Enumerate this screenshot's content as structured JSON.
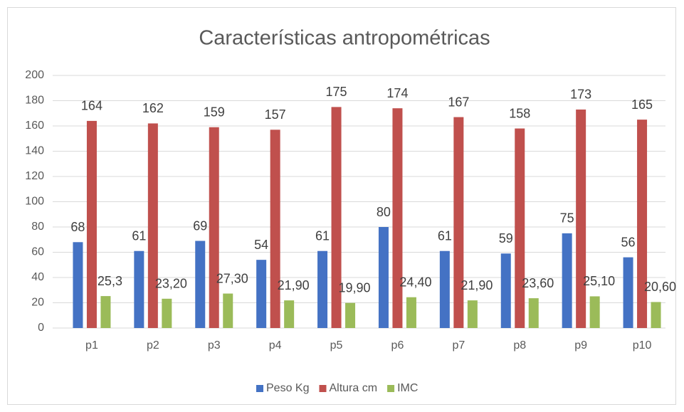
{
  "chart_data": {
    "type": "bar",
    "title": "Características antropométricas",
    "categories": [
      "p1",
      "p2",
      "p3",
      "p4",
      "p5",
      "p6",
      "p7",
      "p8",
      "p9",
      "p10"
    ],
    "series": [
      {
        "name": "Peso Kg",
        "color": "#4472c4",
        "values": [
          68,
          61,
          69,
          54,
          61,
          80,
          61,
          59,
          75,
          56
        ]
      },
      {
        "name": "Altura cm",
        "color": "#c0504d",
        "values": [
          164,
          162,
          159,
          157,
          175,
          174,
          167,
          158,
          173,
          165
        ]
      },
      {
        "name": "IMC",
        "color": "#9bbb59",
        "values": [
          25.3,
          23.2,
          27.3,
          21.9,
          19.9,
          24.4,
          21.9,
          23.6,
          25.1,
          20.6
        ],
        "value_labels": [
          "25,3",
          "23,20",
          "27,30",
          "21,90",
          "19,90",
          "24,40",
          "21,90",
          "23,60",
          "25,10",
          "20,60"
        ]
      }
    ],
    "ylim": [
      0,
      200
    ],
    "yticks": [
      0,
      20,
      40,
      60,
      80,
      100,
      120,
      140,
      160,
      180,
      200
    ],
    "grid": true,
    "legend": "bottom"
  }
}
